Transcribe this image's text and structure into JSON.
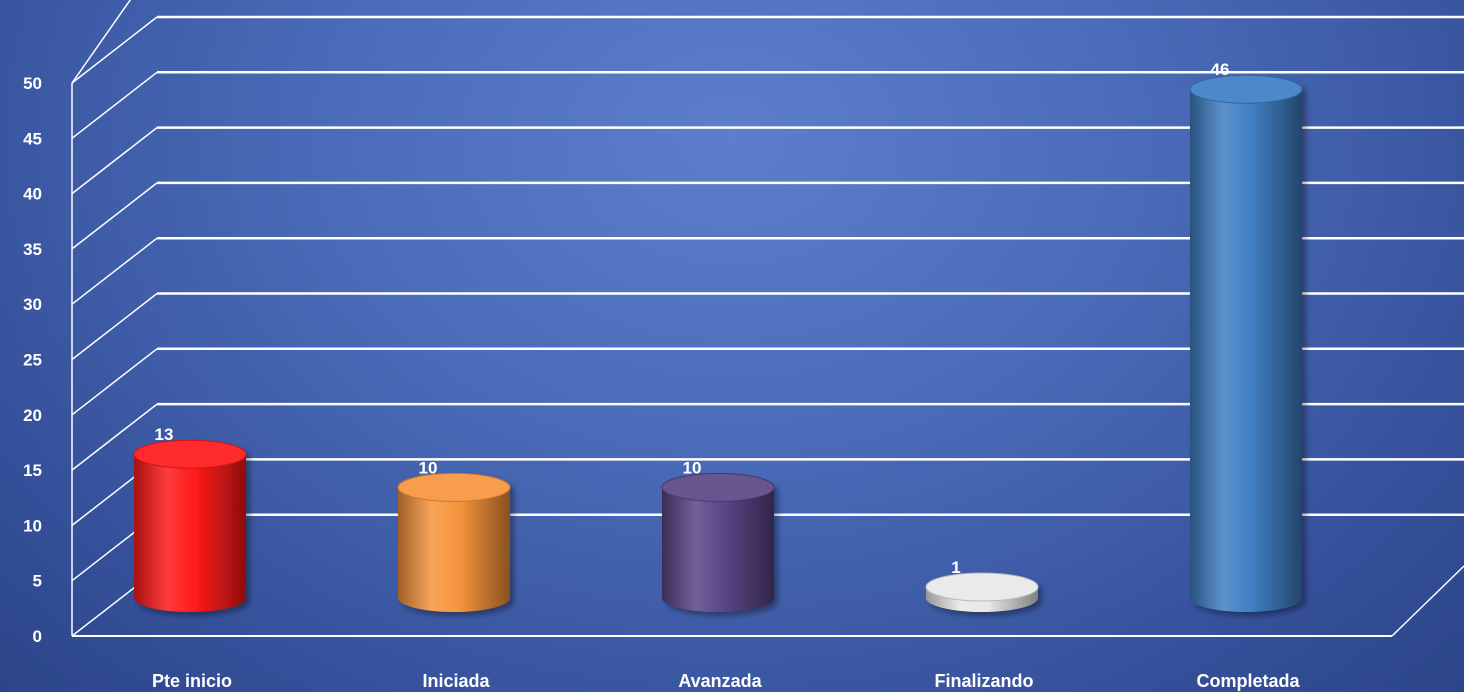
{
  "chart_data": {
    "type": "bar",
    "categories": [
      "Pte inicio",
      "Iniciada",
      "Avanzada",
      "Finalizando",
      "Completada"
    ],
    "values": [
      13,
      10,
      10,
      1,
      46
    ],
    "colors": [
      "#ff1a1a",
      "#f7943d",
      "#5a4585",
      "#e8e8e8",
      "#3f7fc4"
    ],
    "ylim": [
      0,
      50
    ],
    "yticks": [
      "0",
      "5",
      "10",
      "15",
      "20",
      "25",
      "30",
      "35",
      "40",
      "45",
      "50"
    ],
    "data_labels": [
      "13",
      "10",
      "10",
      "1",
      "46"
    ],
    "grid": true,
    "legend": "none",
    "style": "3d-cylinder"
  }
}
